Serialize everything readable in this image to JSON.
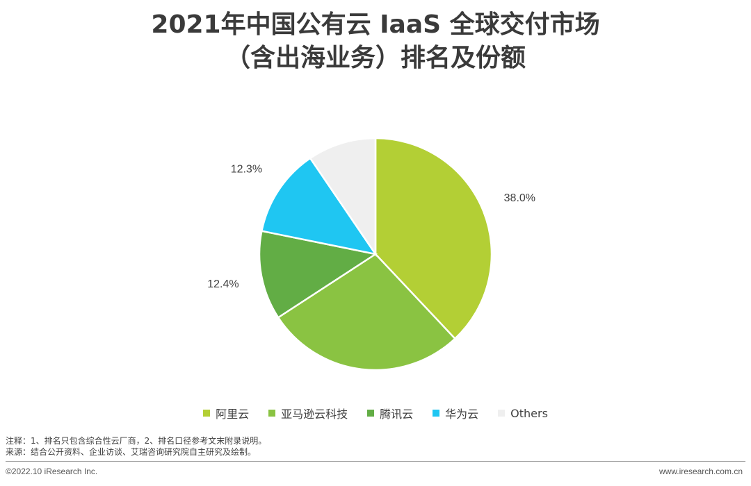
{
  "title": {
    "line1": "2021年中国公有云 IaaS 全球交付市场",
    "line2": "（含出海业务）排名及份额"
  },
  "chart_data": {
    "type": "pie",
    "title": "2021年中国公有云 IaaS 全球交付市场（含出海业务）排名及份额",
    "legend_position": "bottom",
    "slices": [
      {
        "name": "阿里云",
        "value": 38.0,
        "label": "38.0%",
        "color": "#b3cf35"
      },
      {
        "name": "亚马逊云科技",
        "value": 27.8,
        "label": "27.8%",
        "color": "#8ac342"
      },
      {
        "name": "腾讯云",
        "value": 12.4,
        "label": "12.4%",
        "color": "#62ad45"
      },
      {
        "name": "华为云",
        "value": 12.3,
        "label": "12.3%",
        "color": "#1fc6f2"
      },
      {
        "name": "Others",
        "value": 9.5,
        "label": "",
        "color": "#efefef"
      }
    ]
  },
  "notes": {
    "line1": "注释：1、排名只包含综合性云厂商，2、排名口径参考文末附录说明。",
    "line2": "来源：结合公开资料、企业访谈、艾瑞咨询研究院自主研究及绘制。"
  },
  "footer": {
    "copyright": "©2022.10 iResearch Inc.",
    "website": "www.iresearch.com.cn"
  }
}
